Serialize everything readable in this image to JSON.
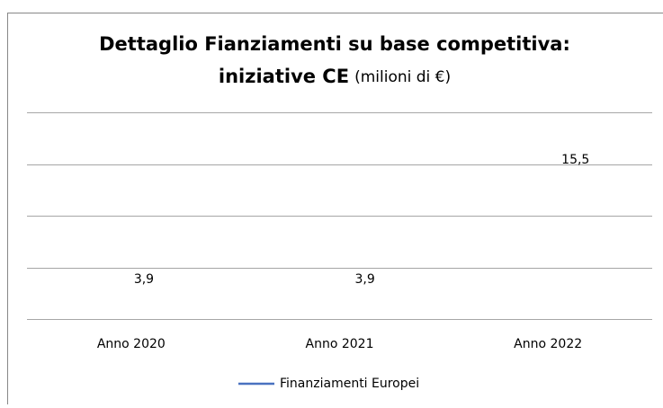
{
  "chart_data": {
    "type": "line",
    "title": [
      "Dettaglio Fianziamenti  su base competitiva:",
      "iniziative CE"
    ],
    "title_note": "(milioni di €)",
    "categories": [
      "Anno 2020",
      "Anno 2021",
      "Anno 2022"
    ],
    "series": [
      {
        "name": "Finanziamenti Europei",
        "color": "#4a72c0",
        "values": [
          3.9,
          3.9,
          15.5
        ],
        "value_labels": [
          "3,9",
          "3,9",
          "15,5"
        ]
      }
    ],
    "ylim": [
      0,
      20
    ],
    "yticks": [
      0,
      5,
      10,
      15,
      20
    ],
    "grid": true,
    "legend": "bottom"
  }
}
